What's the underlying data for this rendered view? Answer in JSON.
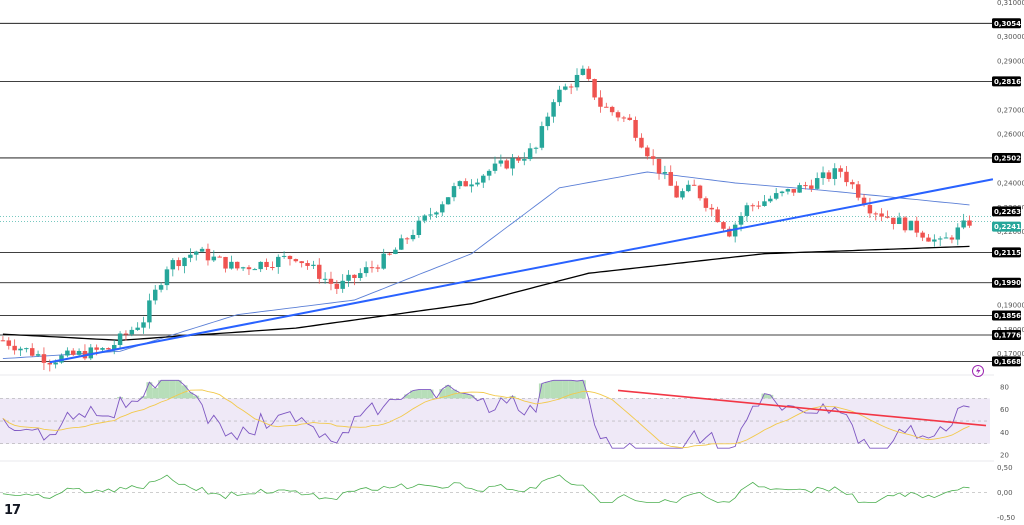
{
  "colors": {
    "up": "#26a69a",
    "down": "#ef5350",
    "level_line": "#000000",
    "trendline": "#2962ff",
    "ma_long": "#000000",
    "ma_short": "#5b7fd6",
    "rsi": "#7e57c2",
    "rsi_ma": "#f2c94c",
    "rsi_trend": "#f23645",
    "rsi_band": "#ede7f6",
    "mom": "#4caf50",
    "label_bg": "#000000",
    "current_up": "#26a69a"
  },
  "branding": {
    "logo": "tradingview-logo",
    "logo_text": "17"
  },
  "chart_data": [
    {
      "type": "candlestick",
      "title": "",
      "xlabel": "",
      "ylabel": "",
      "ylim": [
        0.1625,
        0.315
      ],
      "y_ticks": [
        0.3,
        0.29,
        0.27,
        0.26,
        0.24,
        0.23,
        0.22,
        0.19,
        0.18,
        0.17
      ],
      "y_tick_labels": [
        "0,30000",
        "0,29000",
        "0,27000",
        "0,26000",
        "0,24000",
        "0,23000",
        "0,22000",
        "0,19000",
        "0,18000",
        "0,17000"
      ],
      "top_cut_label": "0,31000",
      "levels": [
        {
          "value": 0.30545,
          "label": "0,30545"
        },
        {
          "value": 0.28164,
          "label": "0,28164"
        },
        {
          "value": 0.25025,
          "label": "0,25025"
        },
        {
          "value": 0.21154,
          "label": "0,21154"
        },
        {
          "value": 0.19909,
          "label": "0,19909"
        },
        {
          "value": 0.18566,
          "label": "0,18566"
        },
        {
          "value": 0.17766,
          "label": "0,17766"
        },
        {
          "value": 0.16686,
          "label": "0,16686"
        }
      ],
      "price_markers": [
        {
          "value": 0.22632,
          "label": "0,22632"
        },
        {
          "value": 0.22413,
          "label": "0,22413"
        }
      ],
      "candles_count": 166,
      "key_points": [
        {
          "bar": 0,
          "close": 0.1755
        },
        {
          "bar": 8,
          "close": 0.1675
        },
        {
          "bar": 18,
          "close": 0.172
        },
        {
          "bar": 24,
          "close": 0.184
        },
        {
          "bar": 28,
          "close": 0.206
        },
        {
          "bar": 33,
          "close": 0.212
        },
        {
          "bar": 40,
          "close": 0.205
        },
        {
          "bar": 50,
          "close": 0.21
        },
        {
          "bar": 57,
          "close": 0.197
        },
        {
          "bar": 66,
          "close": 0.21
        },
        {
          "bar": 72,
          "close": 0.225
        },
        {
          "bar": 77,
          "close": 0.2375
        },
        {
          "bar": 83,
          "close": 0.245
        },
        {
          "bar": 87,
          "close": 0.249
        },
        {
          "bar": 91,
          "close": 0.254
        },
        {
          "bar": 94,
          "close": 0.275
        },
        {
          "bar": 99,
          "close": 0.285
        },
        {
          "bar": 102,
          "close": 0.272
        },
        {
          "bar": 107,
          "close": 0.265
        },
        {
          "bar": 111,
          "close": 0.249
        },
        {
          "bar": 115,
          "close": 0.235
        },
        {
          "bar": 118,
          "close": 0.238
        },
        {
          "bar": 124,
          "close": 0.22
        },
        {
          "bar": 127,
          "close": 0.23
        },
        {
          "bar": 136,
          "close": 0.238
        },
        {
          "bar": 143,
          "close": 0.245
        },
        {
          "bar": 148,
          "close": 0.23
        },
        {
          "bar": 152,
          "close": 0.225
        },
        {
          "bar": 156,
          "close": 0.221
        },
        {
          "bar": 160,
          "close": 0.215
        },
        {
          "bar": 165,
          "close": 0.2241
        }
      ],
      "ma_long_points": [
        {
          "bar": 0,
          "value": 0.178
        },
        {
          "bar": 20,
          "value": 0.1755
        },
        {
          "bar": 50,
          "value": 0.1805
        },
        {
          "bar": 80,
          "value": 0.1905
        },
        {
          "bar": 100,
          "value": 0.203
        },
        {
          "bar": 130,
          "value": 0.211
        },
        {
          "bar": 165,
          "value": 0.214
        }
      ],
      "ma_short_points": [
        {
          "bar": 0,
          "value": 0.168
        },
        {
          "bar": 20,
          "value": 0.171
        },
        {
          "bar": 40,
          "value": 0.186
        },
        {
          "bar": 60,
          "value": 0.192
        },
        {
          "bar": 80,
          "value": 0.211
        },
        {
          "bar": 95,
          "value": 0.238
        },
        {
          "bar": 110,
          "value": 0.2445
        },
        {
          "bar": 125,
          "value": 0.24
        },
        {
          "bar": 140,
          "value": 0.237
        },
        {
          "bar": 165,
          "value": 0.231
        }
      ],
      "trendline": [
        {
          "bar": 8,
          "value": 0.1665
        },
        {
          "bar": 169,
          "value": 0.2415
        }
      ]
    },
    {
      "type": "line",
      "title": "",
      "ylim": [
        20,
        88
      ],
      "y_ticks": [
        80,
        60,
        40,
        20
      ],
      "y_tick_labels": [
        "80",
        "60",
        "40",
        "20"
      ],
      "band": [
        30,
        70
      ],
      "rsi_trendline": [
        {
          "bar": 105,
          "value": 77
        },
        {
          "bar": 175,
          "value": 46
        }
      ]
    },
    {
      "type": "line",
      "title": "",
      "ylim": [
        -0.55,
        0.55
      ],
      "y_ticks": [
        0.5,
        0.0,
        -0.5
      ],
      "y_tick_labels": [
        "0,50",
        "0,00",
        "-0,50"
      ],
      "zero_line": 0
    }
  ]
}
